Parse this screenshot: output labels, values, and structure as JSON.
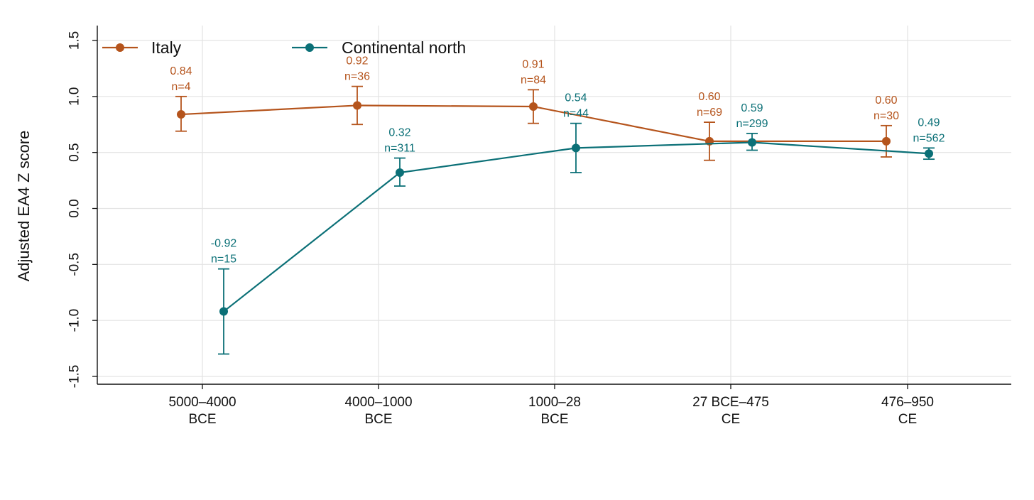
{
  "chart_data": {
    "type": "line",
    "ylabel": "Adjusted EA4 Z score",
    "xlabel": "",
    "ylim": [
      -1.5,
      1.5
    ],
    "yticks": [
      "1.5",
      "1.0",
      "0.5",
      "0.0",
      "-0.5",
      "-1.0",
      "-1.5"
    ],
    "categories": [
      {
        "line1": "5000–4000",
        "line2": "BCE"
      },
      {
        "line1": "4000–1000",
        "line2": "BCE"
      },
      {
        "line1": "1000–28",
        "line2": "BCE"
      },
      {
        "line1": "27 BCE–475",
        "line2": "CE"
      },
      {
        "line1": "476–950",
        "line2": "CE"
      }
    ],
    "grid": true,
    "legend_position": "top-left",
    "series": [
      {
        "name": "Italy",
        "color": "#B5541C",
        "values": [
          0.84,
          0.92,
          0.91,
          0.6,
          0.6
        ],
        "ci_low": [
          0.69,
          0.75,
          0.76,
          0.43,
          0.46
        ],
        "ci_high": [
          1.0,
          1.09,
          1.06,
          0.77,
          0.74
        ],
        "value_labels": [
          "0.84",
          "0.92",
          "0.91",
          "0.60",
          "0.60"
        ],
        "n_labels": [
          "n=4",
          "n=36",
          "n=84",
          "n=69",
          "n=30"
        ]
      },
      {
        "name": "Continental north",
        "color": "#0B7077",
        "values": [
          -0.92,
          0.32,
          0.54,
          0.59,
          0.49
        ],
        "ci_low": [
          -1.3,
          0.2,
          0.32,
          0.52,
          0.44
        ],
        "ci_high": [
          -0.54,
          0.45,
          0.76,
          0.67,
          0.54
        ],
        "value_labels": [
          "-0.92",
          "0.32",
          "0.54",
          "0.59",
          "0.49"
        ],
        "n_labels": [
          "n=15",
          "n=311",
          "n=44",
          "n=299",
          "n=562"
        ]
      }
    ]
  }
}
